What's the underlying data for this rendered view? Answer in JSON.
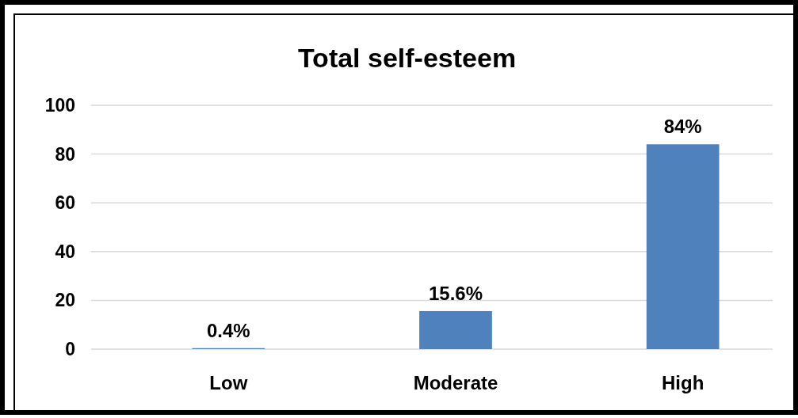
{
  "chart_data": {
    "type": "bar",
    "title": "Total self-esteem",
    "categories": [
      "Low",
      "Moderate",
      "High"
    ],
    "values": [
      0.4,
      15.6,
      84
    ],
    "value_labels": [
      "0.4%",
      "15.6%",
      "84%"
    ],
    "color": "#4f81bd",
    "ylim": [
      0,
      100
    ],
    "yticks": [
      0,
      20,
      40,
      60,
      80,
      100
    ],
    "grid": "y"
  }
}
